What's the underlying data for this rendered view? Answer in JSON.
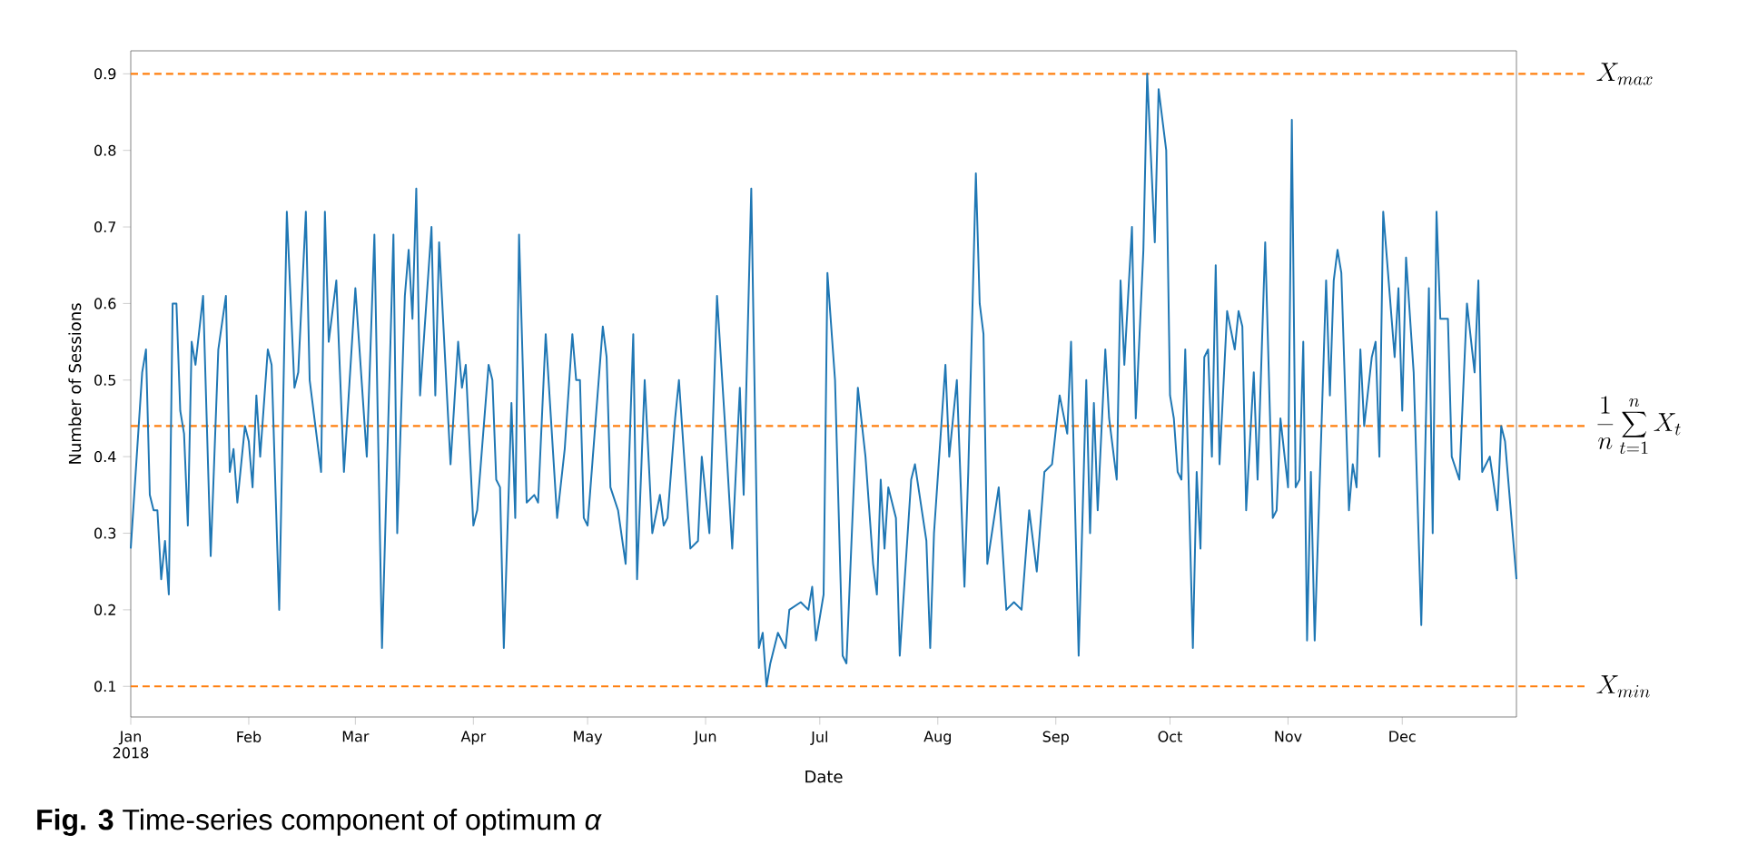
{
  "chart_data": {
    "type": "line",
    "xlabel": "Date",
    "ylabel": "Number of Sessions",
    "color": "#1f77b4",
    "x": [
      "2018-01-01",
      "2018-01-04",
      "2018-01-05",
      "2018-01-06",
      "2018-01-07",
      "2018-01-08",
      "2018-01-09",
      "2018-01-10",
      "2018-01-11",
      "2018-01-12",
      "2018-01-13",
      "2018-01-14",
      "2018-01-15",
      "2018-01-16",
      "2018-01-17",
      "2018-01-18",
      "2018-01-20",
      "2018-01-22",
      "2018-01-24",
      "2018-01-26",
      "2018-01-27",
      "2018-01-28",
      "2018-01-29",
      "2018-01-31",
      "2018-02-01",
      "2018-02-02",
      "2018-02-03",
      "2018-02-04",
      "2018-02-06",
      "2018-02-07",
      "2018-02-09",
      "2018-02-11",
      "2018-02-13",
      "2018-02-14",
      "2018-02-16",
      "2018-02-17",
      "2018-02-20",
      "2018-02-21",
      "2018-02-22",
      "2018-02-24",
      "2018-02-26",
      "2018-03-01",
      "2018-03-04",
      "2018-03-06",
      "2018-03-08",
      "2018-03-11",
      "2018-03-12",
      "2018-03-14",
      "2018-03-15",
      "2018-03-16",
      "2018-03-17",
      "2018-03-18",
      "2018-03-21",
      "2018-03-22",
      "2018-03-23",
      "2018-03-26",
      "2018-03-28",
      "2018-03-29",
      "2018-03-30",
      "2018-04-01",
      "2018-04-02",
      "2018-04-05",
      "2018-04-06",
      "2018-04-07",
      "2018-04-08",
      "2018-04-09",
      "2018-04-11",
      "2018-04-12",
      "2018-04-13",
      "2018-04-15",
      "2018-04-17",
      "2018-04-18",
      "2018-04-20",
      "2018-04-23",
      "2018-04-25",
      "2018-04-27",
      "2018-04-28",
      "2018-04-29",
      "2018-04-30",
      "2018-05-01",
      "2018-05-05",
      "2018-05-06",
      "2018-05-07",
      "2018-05-09",
      "2018-05-11",
      "2018-05-13",
      "2018-05-14",
      "2018-05-16",
      "2018-05-18",
      "2018-05-20",
      "2018-05-21",
      "2018-05-22",
      "2018-05-24",
      "2018-05-25",
      "2018-05-28",
      "2018-05-30",
      "2018-05-31",
      "2018-06-02",
      "2018-06-04",
      "2018-06-06",
      "2018-06-08",
      "2018-06-10",
      "2018-06-11",
      "2018-06-13",
      "2018-06-15",
      "2018-06-16",
      "2018-06-17",
      "2018-06-18",
      "2018-06-20",
      "2018-06-22",
      "2018-06-23",
      "2018-06-26",
      "2018-06-28",
      "2018-06-29",
      "2018-06-30",
      "2018-07-02",
      "2018-07-03",
      "2018-07-05",
      "2018-07-07",
      "2018-07-08",
      "2018-07-11",
      "2018-07-13",
      "2018-07-15",
      "2018-07-16",
      "2018-07-17",
      "2018-07-18",
      "2018-07-19",
      "2018-07-21",
      "2018-07-22",
      "2018-07-25",
      "2018-07-26",
      "2018-07-29",
      "2018-07-30",
      "2018-07-31",
      "2018-08-03",
      "2018-08-04",
      "2018-08-06",
      "2018-08-08",
      "2018-08-09",
      "2018-08-11",
      "2018-08-12",
      "2018-08-13",
      "2018-08-14",
      "2018-08-17",
      "2018-08-19",
      "2018-08-21",
      "2018-08-23",
      "2018-08-25",
      "2018-08-27",
      "2018-08-29",
      "2018-08-31",
      "2018-09-02",
      "2018-09-04",
      "2018-09-05",
      "2018-09-07",
      "2018-09-09",
      "2018-09-10",
      "2018-09-11",
      "2018-09-12",
      "2018-09-14",
      "2018-09-15",
      "2018-09-17",
      "2018-09-18",
      "2018-09-19",
      "2018-09-21",
      "2018-09-22",
      "2018-09-24",
      "2018-09-25",
      "2018-09-27",
      "2018-09-28",
      "2018-09-30",
      "2018-10-01",
      "2018-10-02",
      "2018-10-03",
      "2018-10-04",
      "2018-10-05",
      "2018-10-07",
      "2018-10-08",
      "2018-10-09",
      "2018-10-10",
      "2018-10-11",
      "2018-10-12",
      "2018-10-13",
      "2018-10-14",
      "2018-10-16",
      "2018-10-18",
      "2018-10-19",
      "2018-10-20",
      "2018-10-21",
      "2018-10-23",
      "2018-10-24",
      "2018-10-26",
      "2018-10-28",
      "2018-10-29",
      "2018-10-30",
      "2018-11-01",
      "2018-11-02",
      "2018-11-03",
      "2018-11-04",
      "2018-11-05",
      "2018-11-06",
      "2018-11-07",
      "2018-11-08",
      "2018-11-11",
      "2018-11-12",
      "2018-11-13",
      "2018-11-14",
      "2018-11-15",
      "2018-11-17",
      "2018-11-18",
      "2018-11-19",
      "2018-11-20",
      "2018-11-21",
      "2018-11-23",
      "2018-11-24",
      "2018-11-25",
      "2018-11-26",
      "2018-11-29",
      "2018-11-30",
      "2018-12-01",
      "2018-12-02",
      "2018-12-04",
      "2018-12-06",
      "2018-12-08",
      "2018-12-09",
      "2018-12-10",
      "2018-12-11",
      "2018-12-13",
      "2018-12-14",
      "2018-12-16",
      "2018-12-18",
      "2018-12-20",
      "2018-12-21",
      "2018-12-22",
      "2018-12-24",
      "2018-12-26",
      "2018-12-27",
      "2018-12-28",
      "2018-12-30",
      "2018-12-31"
    ],
    "values": [
      0.28,
      0.51,
      0.54,
      0.35,
      0.33,
      0.33,
      0.24,
      0.29,
      0.22,
      0.6,
      0.6,
      0.46,
      0.43,
      0.31,
      0.55,
      0.52,
      0.61,
      0.27,
      0.54,
      0.61,
      0.38,
      0.41,
      0.34,
      0.44,
      0.42,
      0.36,
      0.48,
      0.4,
      0.54,
      0.52,
      0.2,
      0.72,
      0.49,
      0.51,
      0.72,
      0.5,
      0.38,
      0.72,
      0.55,
      0.63,
      0.38,
      0.62,
      0.4,
      0.69,
      0.15,
      0.69,
      0.3,
      0.61,
      0.67,
      0.58,
      0.75,
      0.48,
      0.7,
      0.48,
      0.68,
      0.39,
      0.55,
      0.49,
      0.52,
      0.31,
      0.33,
      0.52,
      0.5,
      0.37,
      0.36,
      0.15,
      0.47,
      0.32,
      0.69,
      0.34,
      0.35,
      0.34,
      0.56,
      0.32,
      0.41,
      0.56,
      0.5,
      0.5,
      0.32,
      0.31,
      0.57,
      0.53,
      0.36,
      0.33,
      0.26,
      0.56,
      0.24,
      0.5,
      0.3,
      0.35,
      0.31,
      0.32,
      0.45,
      0.5,
      0.28,
      0.29,
      0.4,
      0.3,
      0.61,
      0.45,
      0.28,
      0.49,
      0.35,
      0.75,
      0.15,
      0.17,
      0.1,
      0.13,
      0.17,
      0.15,
      0.2,
      0.21,
      0.2,
      0.23,
      0.16,
      0.22,
      0.64,
      0.5,
      0.14,
      0.13,
      0.49,
      0.4,
      0.26,
      0.22,
      0.37,
      0.28,
      0.36,
      0.32,
      0.14,
      0.37,
      0.39,
      0.29,
      0.15,
      0.3,
      0.52,
      0.4,
      0.5,
      0.23,
      0.38,
      0.77,
      0.6,
      0.56,
      0.26,
      0.36,
      0.2,
      0.21,
      0.2,
      0.33,
      0.25,
      0.38,
      0.39,
      0.48,
      0.43,
      0.55,
      0.14,
      0.5,
      0.3,
      0.47,
      0.33,
      0.54,
      0.45,
      0.37,
      0.63,
      0.52,
      0.7,
      0.45,
      0.67,
      0.9,
      0.68,
      0.88,
      0.8,
      0.48,
      0.45,
      0.38,
      0.37,
      0.54,
      0.15,
      0.38,
      0.28,
      0.53,
      0.54,
      0.4,
      0.65,
      0.39,
      0.59,
      0.54,
      0.59,
      0.57,
      0.33,
      0.51,
      0.37,
      0.68,
      0.32,
      0.33,
      0.45,
      0.36,
      0.84,
      0.36,
      0.37,
      0.55,
      0.16,
      0.38,
      0.16,
      0.63,
      0.48,
      0.63,
      0.67,
      0.64,
      0.33,
      0.39,
      0.36,
      0.54,
      0.44,
      0.53,
      0.55,
      0.4,
      0.72,
      0.53,
      0.62,
      0.46,
      0.66,
      0.51,
      0.18,
      0.62,
      0.3,
      0.72,
      0.58,
      0.58,
      0.4,
      0.37,
      0.6,
      0.51,
      0.63,
      0.38,
      0.4,
      0.33,
      0.44,
      0.42,
      0.3,
      0.24
    ],
    "xlim": [
      "2018-01-01",
      "2018-12-31"
    ],
    "xticks": [
      {
        "value": "2018-01-01",
        "label": "Jan 2018"
      },
      {
        "value": "2018-02-01",
        "label": "Feb"
      },
      {
        "value": "2018-03-01",
        "label": "Mar"
      },
      {
        "value": "2018-04-01",
        "label": "Apr"
      },
      {
        "value": "2018-05-01",
        "label": "May"
      },
      {
        "value": "2018-06-01",
        "label": "Jun"
      },
      {
        "value": "2018-07-01",
        "label": "Jul"
      },
      {
        "value": "2018-08-01",
        "label": "Aug"
      },
      {
        "value": "2018-09-01",
        "label": "Sep"
      },
      {
        "value": "2018-10-01",
        "label": "Oct"
      },
      {
        "value": "2018-11-01",
        "label": "Nov"
      },
      {
        "value": "2018-12-01",
        "label": "Dec"
      }
    ],
    "ylim": [
      0.06,
      0.93
    ],
    "yticks": [
      0.1,
      0.2,
      0.3,
      0.4,
      0.5,
      0.6,
      0.7,
      0.8,
      0.9
    ],
    "ref_lines": [
      {
        "axis": "y",
        "value": 0.9,
        "label": "X_{max}",
        "color": "#ff7f0e",
        "line_style": "dashed"
      },
      {
        "axis": "y",
        "value": 0.44,
        "color": "#ff7f0e",
        "line_style": "dashed"
      },
      {
        "axis": "y",
        "value": 0.1,
        "label": "X_{min}",
        "color": "#ff7f0e",
        "line_style": "dashed"
      }
    ],
    "annotations": [
      "**Fig. 3** Time-series component of optimum *α*",
      "\\frac{1}{n}\\sum_{t=1}^{n} X_t"
    ]
  }
}
